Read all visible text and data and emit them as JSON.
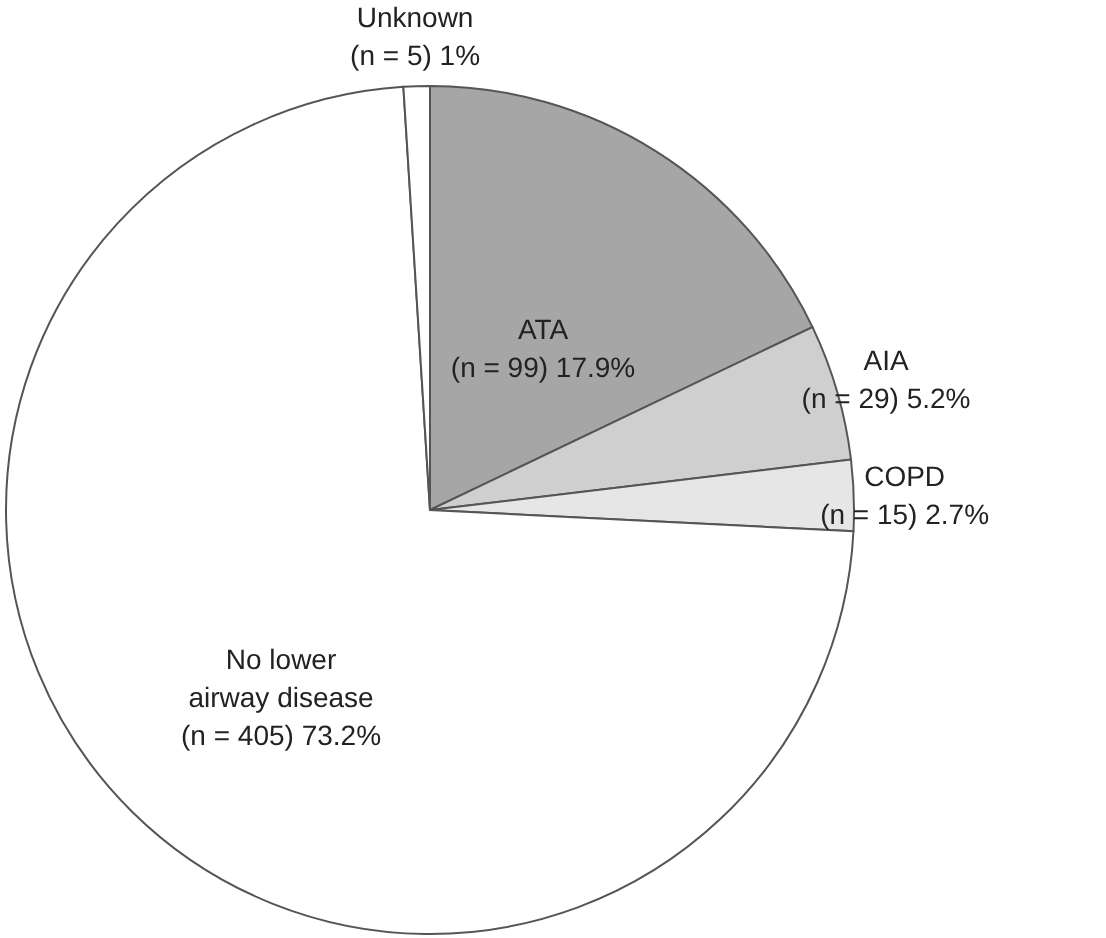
{
  "chart_data": {
    "type": "pie",
    "categories": [
      "ATA",
      "AIA",
      "COPD",
      "No lower airway disease",
      "Unknown"
    ],
    "values": [
      17.9,
      5.2,
      2.7,
      73.2,
      1
    ],
    "value_labels": [
      "(n = 99) 17.9%",
      "(n = 29) 5.2%",
      "(n = 15) 2.7%",
      "(n = 405) 73.2%",
      "(n = 5) 1%"
    ],
    "colors": [
      "#a6a6a6",
      "#cfcfcf",
      "#e6e6e6",
      "#ffffff",
      "#ffffff"
    ]
  }
}
